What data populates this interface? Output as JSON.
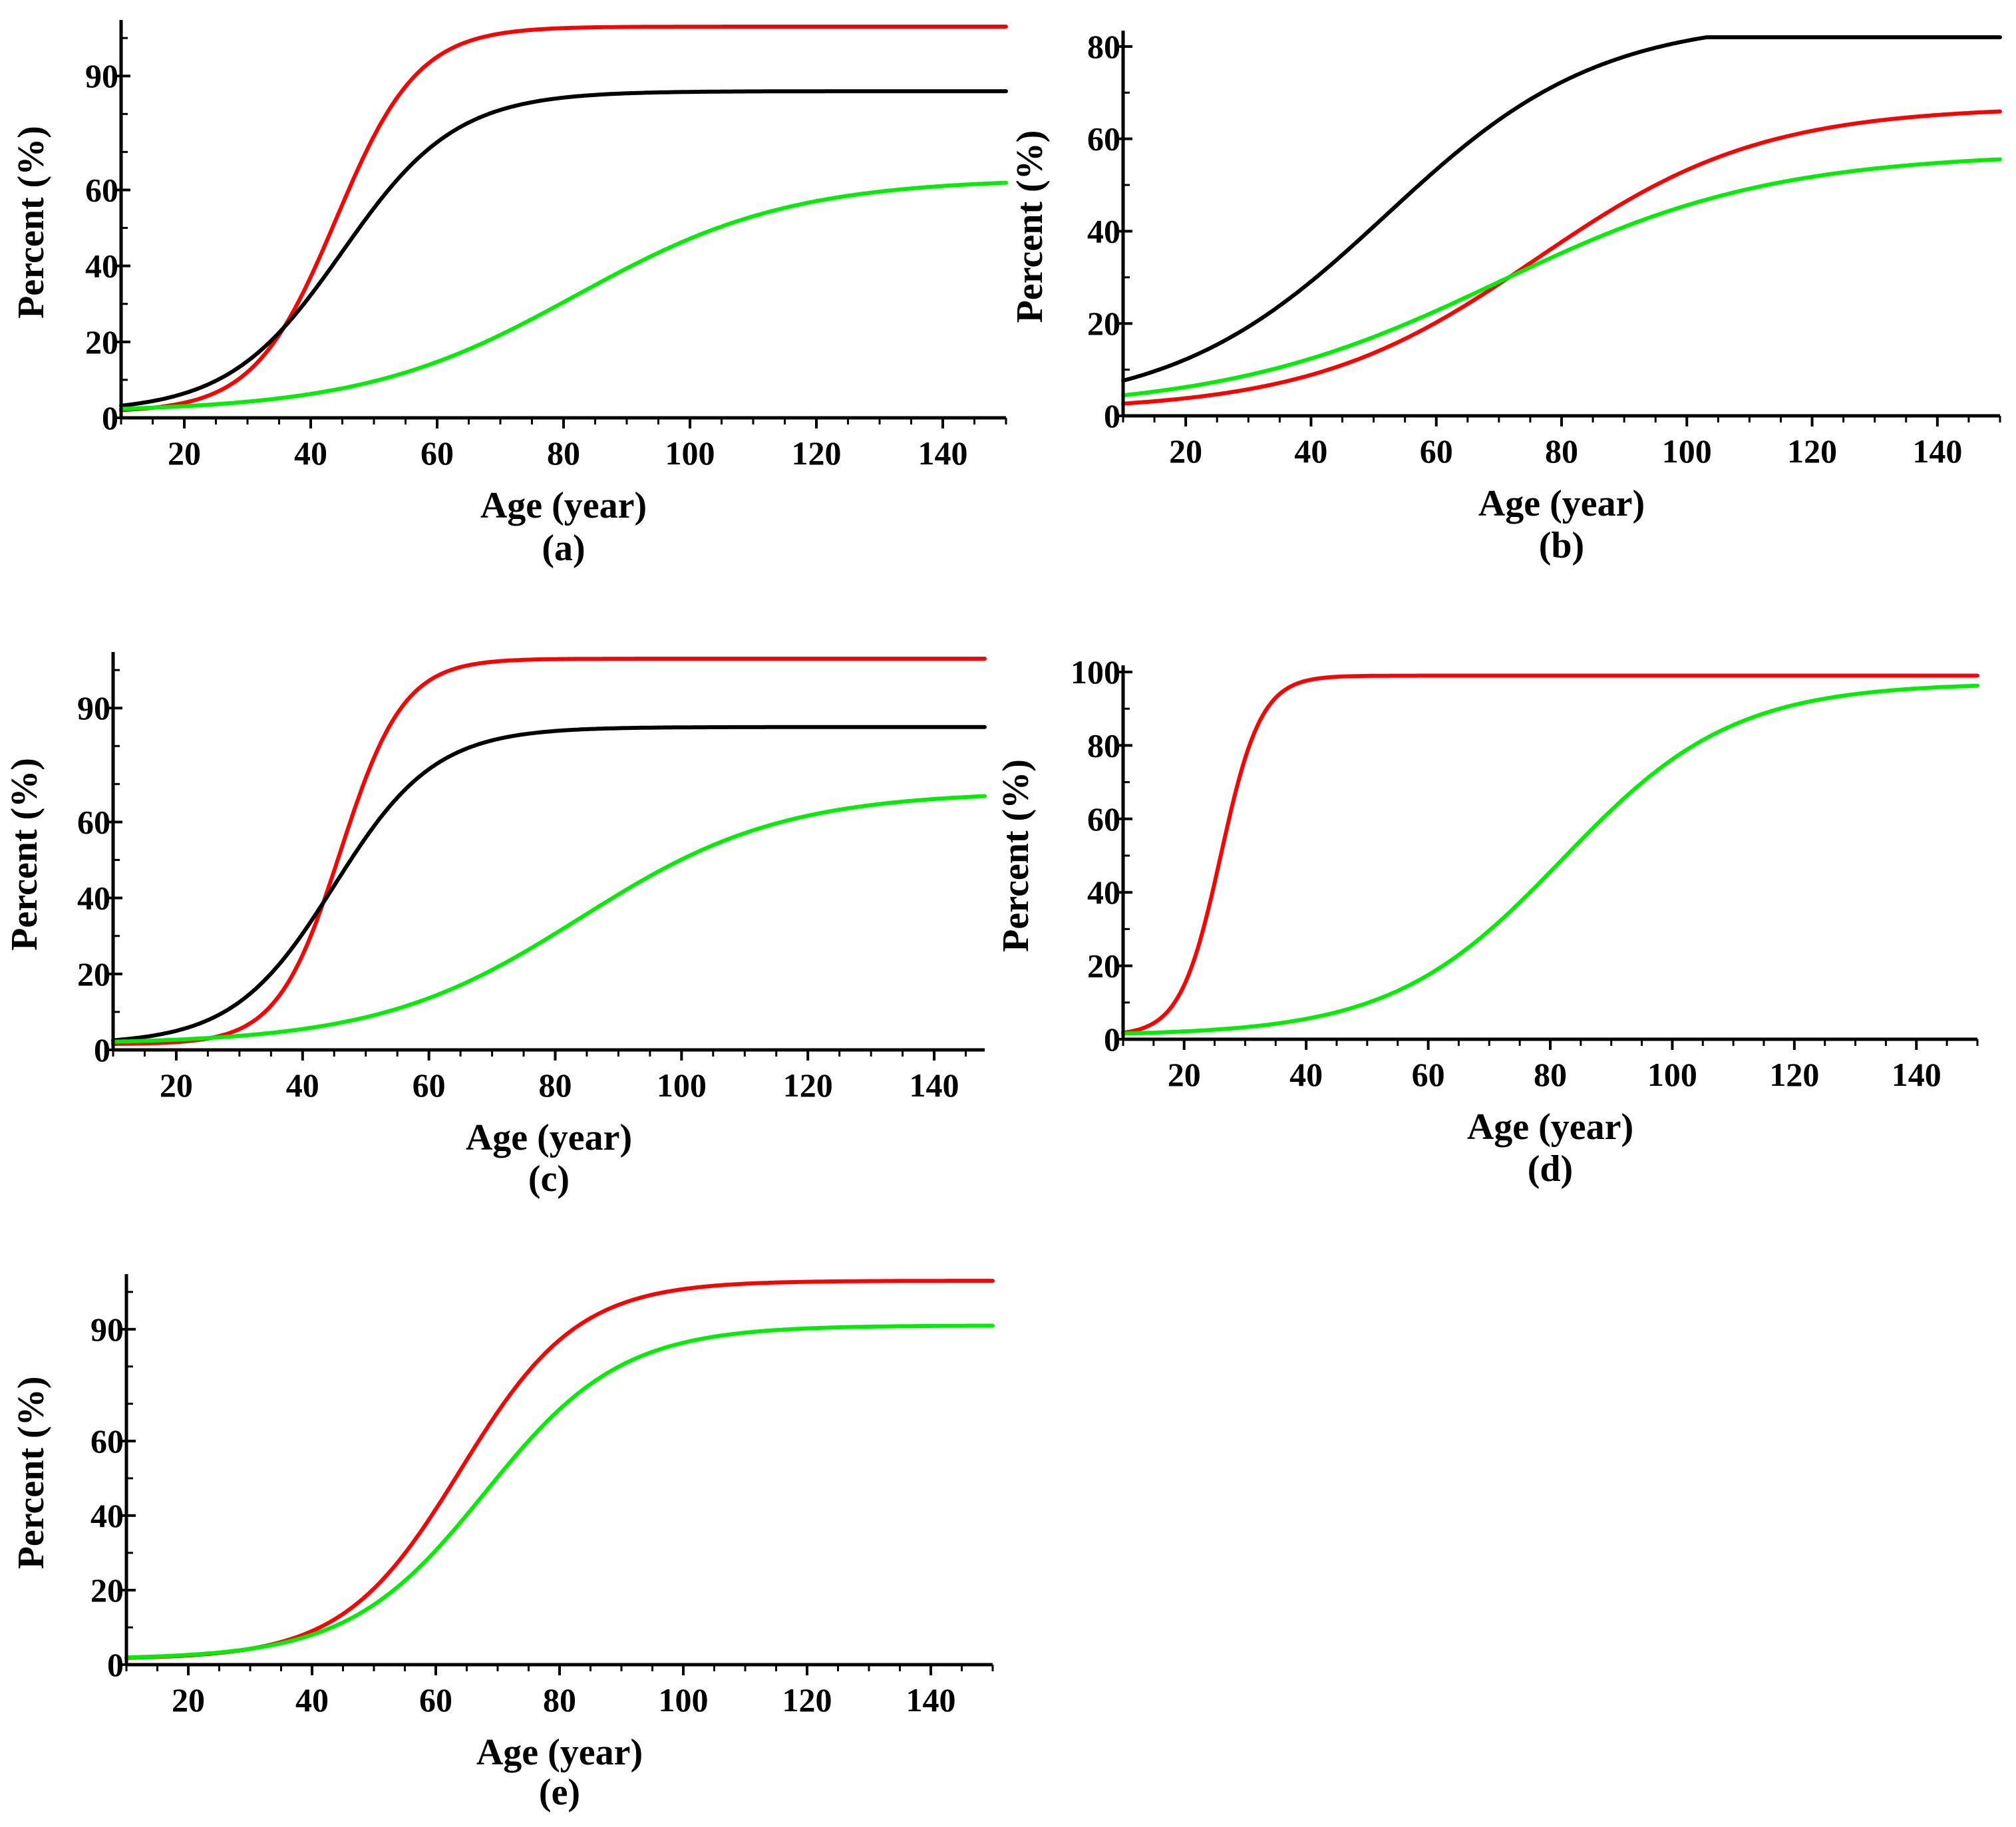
{
  "colors": {
    "red": "#ff0000",
    "black": "#000000",
    "green": "#00ee00"
  },
  "chart_data": [
    {
      "type": "line",
      "panel": "a",
      "caption": "(a)",
      "xlabel": "Age (year)",
      "ylabel": "Percent (%)",
      "xlim": [
        10,
        150
      ],
      "ylim": [
        0,
        103
      ],
      "xticks": [
        20,
        40,
        60,
        80,
        100,
        120,
        140
      ],
      "yticks": [
        0,
        20,
        40,
        60,
        90
      ],
      "ytick_minor": [
        10,
        30,
        50,
        70,
        80,
        100
      ],
      "series": [
        {
          "name": "red",
          "color": "red",
          "floor": 1.5,
          "max": 103,
          "mid": 44,
          "width": 6.5
        },
        {
          "name": "black",
          "color": "black",
          "floor": 1.5,
          "max": 86,
          "mid": 45,
          "width": 9
        },
        {
          "name": "green",
          "color": "green",
          "floor": 1.5,
          "max": 63,
          "mid": 82,
          "width": 17
        }
      ]
    },
    {
      "type": "line",
      "panel": "b",
      "caption": "(b)",
      "xlabel": "Age (year)",
      "ylabel": "Percent (%)",
      "xlim": [
        10,
        150
      ],
      "ylim": [
        0,
        82
      ],
      "xticks": [
        20,
        40,
        60,
        80,
        100,
        120,
        140
      ],
      "yticks": [
        0,
        20,
        40,
        60,
        80
      ],
      "ytick_minor": [
        10,
        30,
        50,
        70
      ],
      "series": [
        {
          "name": "black",
          "color": "black",
          "floor": 1,
          "max": 86,
          "mid": 52,
          "width": 17
        },
        {
          "name": "red",
          "color": "red",
          "floor": 1,
          "max": 67,
          "mid": 76,
          "width": 18
        },
        {
          "name": "green",
          "color": "green",
          "floor": 1,
          "max": 57,
          "mid": 70,
          "width": 22
        }
      ]
    },
    {
      "type": "line",
      "panel": "c",
      "caption": "(c)",
      "xlabel": "Age (year)",
      "ylabel": "Percent (%)",
      "xlim": [
        10,
        148
      ],
      "ylim": [
        0,
        103
      ],
      "xticks": [
        20,
        40,
        60,
        80,
        100,
        120,
        140
      ],
      "yticks": [
        0,
        20,
        40,
        60,
        90
      ],
      "ytick_minor": [
        10,
        30,
        50,
        70,
        80,
        100
      ],
      "series": [
        {
          "name": "red",
          "color": "red",
          "floor": 1.5,
          "max": 103,
          "mid": 46,
          "width": 5
        },
        {
          "name": "black",
          "color": "black",
          "floor": 1.5,
          "max": 85,
          "mid": 45,
          "width": 8
        },
        {
          "name": "green",
          "color": "green",
          "floor": 1.5,
          "max": 68,
          "mid": 84,
          "width": 16
        }
      ]
    },
    {
      "type": "line",
      "panel": "d",
      "caption": "(d)",
      "xlabel": "Age (year)",
      "ylabel": "Percent (%)",
      "xlim": [
        10,
        150
      ],
      "ylim": [
        0,
        100
      ],
      "xticks": [
        20,
        40,
        60,
        80,
        100,
        120,
        140
      ],
      "yticks": [
        0,
        20,
        40,
        60,
        80,
        100
      ],
      "ytick_minor": [
        10,
        30,
        50,
        70,
        90
      ],
      "series": [
        {
          "name": "red",
          "color": "red",
          "floor": 1,
          "max": 99,
          "mid": 26,
          "width": 3.3
        },
        {
          "name": "green",
          "color": "green",
          "floor": 1,
          "max": 97,
          "mid": 82,
          "width": 14
        }
      ]
    },
    {
      "type": "line",
      "panel": "e",
      "caption": "(e)",
      "xlabel": "Age (year)",
      "ylabel": "Percent (%)",
      "xlim": [
        10,
        150
      ],
      "ylim": [
        0,
        103
      ],
      "xticks": [
        20,
        40,
        60,
        80,
        100,
        120,
        140
      ],
      "yticks": [
        0,
        20,
        40,
        60,
        90
      ],
      "ytick_minor": [
        10,
        30,
        50,
        70,
        80,
        100
      ],
      "series": [
        {
          "name": "red",
          "color": "red",
          "floor": 1.5,
          "max": 103,
          "mid": 64,
          "width": 9.5
        },
        {
          "name": "green",
          "color": "green",
          "floor": 1.5,
          "max": 91,
          "mid": 68,
          "width": 11
        }
      ]
    }
  ]
}
